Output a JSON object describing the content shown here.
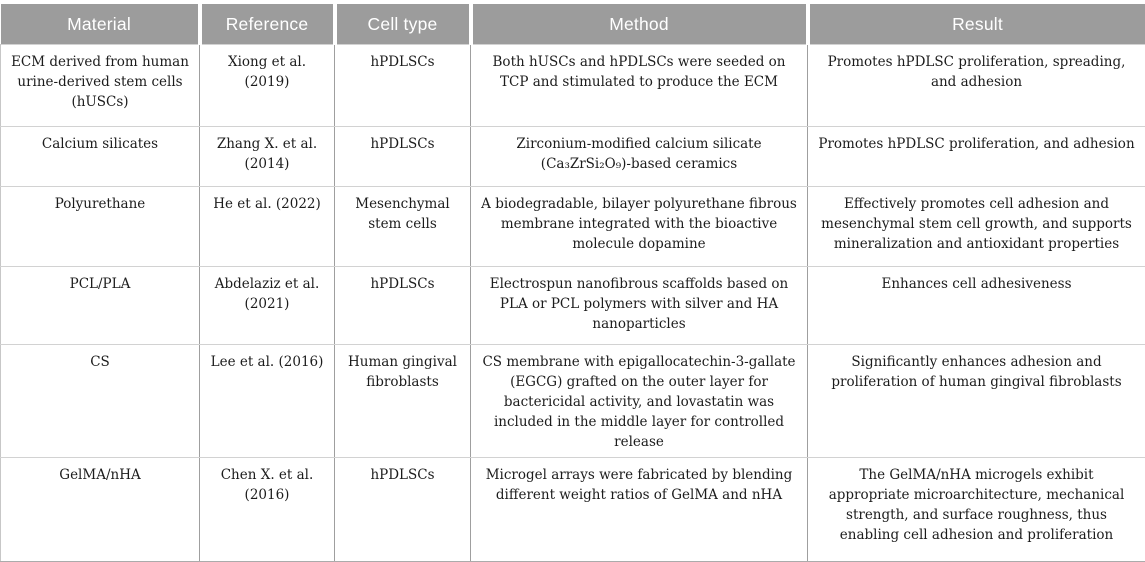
{
  "colors": {
    "header_background": "#9c9c9c",
    "header_text": "#ffffff",
    "body_text": "#1c1c1c",
    "grid_line": "#d2d2d2",
    "column_line": "#9f9f9f"
  },
  "table": {
    "columns": [
      {
        "label": "Material"
      },
      {
        "label": "Reference"
      },
      {
        "label": "Cell type"
      },
      {
        "label": "Method"
      },
      {
        "label": "Result"
      }
    ],
    "rows": [
      {
        "material": "ECM derived from human urine-derived stem cells (hUSCs)",
        "reference": "Xiong et al. (2019)",
        "cell_type": "hPDLSCs",
        "method": "Both hUSCs and hPDLSCs were seeded on TCP and stimulated to produce the ECM",
        "result": "Promotes hPDLSC proliferation, spreading, and adhesion"
      },
      {
        "material": "Calcium silicates",
        "reference": "Zhang X. et al. (2014)",
        "cell_type": "hPDLSCs",
        "method": "Zirconium-modified calcium silicate (Ca₃ZrSi₂O₉)-based ceramics",
        "result": "Promotes hPDLSC proliferation, and adhesion"
      },
      {
        "material": "Polyurethane",
        "reference": "He et al. (2022)",
        "cell_type": "Mesenchymal stem cells",
        "method": "A biodegradable, bilayer polyurethane fibrous membrane integrated with the bioactive molecule dopamine",
        "result": "Effectively promotes cell adhesion and mesenchymal stem cell growth, and supports mineralization and antioxidant properties"
      },
      {
        "material": "PCL/PLA",
        "reference": "Abdelaziz et al. (2021)",
        "cell_type": "hPDLSCs",
        "method": "Electrospun nanofibrous scaffolds based on PLA or PCL polymers with silver and HA nanoparticles",
        "result": "Enhances cell adhesiveness"
      },
      {
        "material": "CS",
        "reference": "Lee et al. (2016)",
        "cell_type": "Human gingival fibroblasts",
        "method": "CS membrane with epigallocatechin-3-gallate (EGCG) grafted on the outer layer for bactericidal activity, and lovastatin was included in the middle layer for controlled release",
        "result": "Significantly enhances adhesion and proliferation of human gingival fibroblasts"
      },
      {
        "material": "GelMA/nHA",
        "reference": "Chen X. et al. (2016)",
        "cell_type": "hPDLSCs",
        "method": "Microgel arrays were fabricated by blending different weight ratios of GelMA and nHA",
        "result": "The GelMA/nHA microgels exhibit appropriate microarchitecture, mechanical strength, and surface roughness, thus enabling cell adhesion and proliferation"
      }
    ]
  }
}
